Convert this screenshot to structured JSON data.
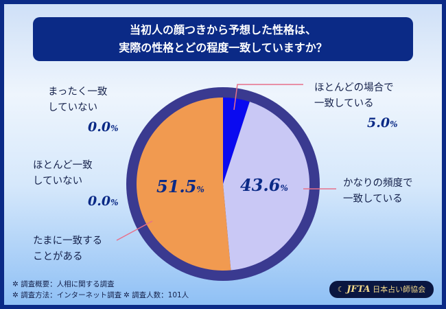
{
  "chart_data": {
    "type": "pie",
    "title": "当初人の顔つきから予想した性格は、\n実際の性格とどの程度一致していますか？",
    "title_lines": [
      "当初人の顔つきから予想した性格は、",
      "実際の性格とどの程度一致していますか？"
    ],
    "unit": "%",
    "slices": [
      {
        "label_lines": [
          "ほとんどの場合で",
          "一致している"
        ],
        "value": 5.0,
        "value_text": "5.0",
        "color": "#0a0af0"
      },
      {
        "label_lines": [
          "かなりの頻度で",
          "一致している"
        ],
        "value": 43.6,
        "value_text": "43.6",
        "color": "#c9c8f5"
      },
      {
        "label_lines": [
          "たまに一致する",
          "ことがある"
        ],
        "value": 51.5,
        "value_text": "51.5",
        "color": "#f19a50"
      },
      {
        "label_lines": [
          "ほとんど一致",
          "していない"
        ],
        "value": 0.0,
        "value_text": "0.0",
        "color": "#f19a50"
      },
      {
        "label_lines": [
          "まったく一致",
          "していない"
        ],
        "value": 0.0,
        "value_text": "0.0",
        "color": "#f19a50"
      }
    ]
  },
  "notes": {
    "summary": "✲ 調査概要：人相に関する調査",
    "method": "✲ 調査方法：インターネット調査",
    "count": "✲ 調査人数：101人"
  },
  "logo": {
    "mark": "JFTA",
    "name": "日本占い師協会"
  },
  "ring_color": "#3a3a90",
  "leader_color": "#e8708a"
}
